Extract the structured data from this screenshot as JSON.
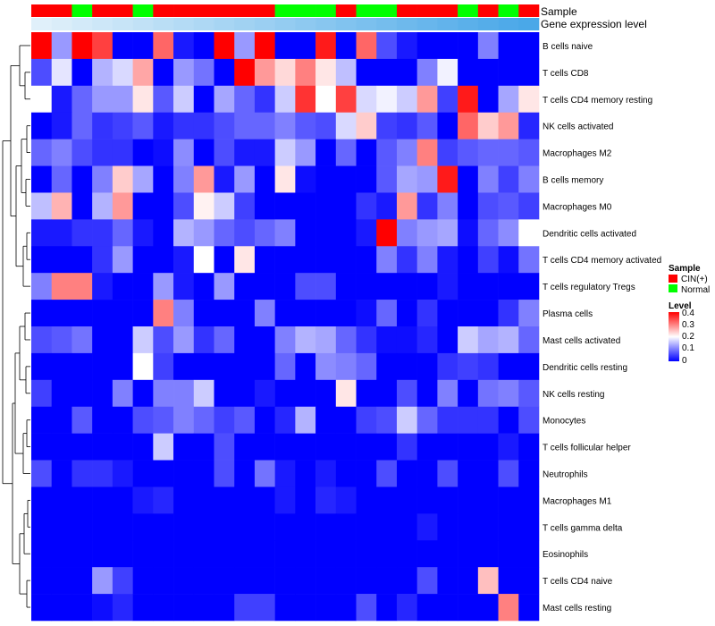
{
  "chart_data": {
    "type": "heatmap",
    "title": "",
    "annotation_tracks": [
      "Sample",
      "Gene expression level"
    ],
    "sample_annotation": [
      "CIN(+)",
      "CIN(+)",
      "Normal",
      "CIN(+)",
      "CIN(+)",
      "Normal",
      "CIN(+)",
      "CIN(+)",
      "CIN(+)",
      "CIN(+)",
      "CIN(+)",
      "CIN(+)",
      "Normal",
      "Normal",
      "Normal",
      "CIN(+)",
      "Normal",
      "Normal",
      "CIN(+)",
      "CIN(+)",
      "CIN(+)",
      "Normal",
      "CIN(+)",
      "Normal",
      "CIN(+)"
    ],
    "expression_gradient": [
      0.05,
      0.09,
      0.13,
      0.17,
      0.21,
      0.25,
      0.29,
      0.33,
      0.37,
      0.41,
      0.45,
      0.49,
      0.53,
      0.57,
      0.61,
      0.65,
      0.69,
      0.73,
      0.77,
      0.81,
      0.85,
      0.89,
      0.93,
      0.97,
      1.0
    ],
    "rows": [
      "B cells naive",
      "T cells CD8",
      "T cells CD4 memory resting",
      "NK cells activated",
      "Macrophages M2",
      "B cells memory",
      "Macrophages M0",
      "Dendritic cells activated",
      "T cells CD4 memory activated",
      "T cells regulatory  Tregs",
      "Plasma cells",
      "Mast cells activated",
      "Dendritic cells resting",
      "NK cells resting",
      "Monocytes",
      "T cells follicular helper",
      "Neutrophils",
      "Macrophages M1",
      "T cells gamma delta",
      "Eosinophils",
      "T cells CD4 naive",
      "Mast cells resting"
    ],
    "values": [
      [
        0.4,
        0.12,
        0.4,
        0.35,
        0.0,
        0.0,
        0.32,
        0.02,
        0.0,
        0.4,
        0.12,
        0.4,
        0.0,
        0.0,
        0.38,
        0.0,
        0.32,
        0.06,
        0.02,
        0.0,
        0.0,
        0.0,
        0.1,
        0.0,
        0.0
      ],
      [
        0.06,
        0.18,
        0.0,
        0.14,
        0.17,
        0.27,
        0.0,
        0.12,
        0.09,
        0.0,
        0.4,
        0.28,
        0.23,
        0.3,
        0.22,
        0.15,
        0.0,
        0.0,
        0.0,
        0.1,
        0.19,
        0.0,
        0.0,
        0.0,
        0.0
      ],
      [
        0.2,
        0.02,
        0.08,
        0.12,
        0.12,
        0.22,
        0.07,
        0.16,
        0.0,
        0.13,
        0.08,
        0.04,
        0.16,
        0.36,
        0.2,
        0.35,
        0.17,
        0.19,
        0.16,
        0.28,
        0.05,
        0.38,
        0.0,
        0.13,
        0.22
      ],
      [
        0.0,
        0.02,
        0.08,
        0.04,
        0.05,
        0.07,
        0.02,
        0.04,
        0.04,
        0.06,
        0.08,
        0.08,
        0.1,
        0.07,
        0.06,
        0.17,
        0.24,
        0.05,
        0.04,
        0.07,
        0.0,
        0.32,
        0.24,
        0.28,
        0.03
      ],
      [
        0.08,
        0.1,
        0.06,
        0.04,
        0.04,
        0.0,
        0.01,
        0.11,
        0.0,
        0.06,
        0.02,
        0.02,
        0.16,
        0.12,
        0.0,
        0.08,
        0.0,
        0.07,
        0.1,
        0.3,
        0.05,
        0.07,
        0.08,
        0.08,
        0.07
      ],
      [
        0.0,
        0.08,
        0.0,
        0.1,
        0.24,
        0.13,
        0.0,
        0.1,
        0.28,
        0.02,
        0.12,
        0.0,
        0.22,
        0.01,
        0.0,
        0.0,
        0.0,
        0.07,
        0.13,
        0.12,
        0.38,
        0.0,
        0.1,
        0.05,
        0.1
      ],
      [
        0.15,
        0.26,
        0.0,
        0.14,
        0.28,
        0.0,
        0.0,
        0.06,
        0.21,
        0.16,
        0.05,
        0.0,
        0.0,
        0.0,
        0.0,
        0.0,
        0.04,
        0.02,
        0.28,
        0.04,
        0.1,
        0.0,
        0.06,
        0.07,
        0.05
      ],
      [
        0.02,
        0.02,
        0.04,
        0.04,
        0.08,
        0.02,
        0.0,
        0.14,
        0.12,
        0.08,
        0.06,
        0.08,
        0.1,
        0.0,
        0.0,
        0.0,
        0.02,
        0.4,
        0.1,
        0.12,
        0.13,
        0.01,
        0.08,
        0.11,
        0.2
      ],
      [
        0.0,
        0.0,
        0.0,
        0.04,
        0.12,
        0.0,
        0.0,
        0.02,
        0.2,
        0.0,
        0.22,
        0.0,
        0.0,
        0.0,
        0.0,
        0.0,
        0.0,
        0.1,
        0.04,
        0.1,
        0.02,
        0.0,
        0.05,
        0.01,
        0.09
      ],
      [
        0.1,
        0.3,
        0.3,
        0.02,
        0.0,
        0.0,
        0.12,
        0.02,
        0.0,
        0.12,
        0.0,
        0.0,
        0.0,
        0.06,
        0.06,
        0.0,
        0.0,
        0.0,
        0.0,
        0.0,
        0.02,
        0.0,
        0.0,
        0.0,
        0.0
      ],
      [
        0.0,
        0.0,
        0.0,
        0.0,
        0.0,
        0.0,
        0.3,
        0.1,
        0.0,
        0.0,
        0.0,
        0.1,
        0.0,
        0.0,
        0.0,
        0.0,
        0.01,
        0.08,
        0.0,
        0.04,
        0.0,
        0.0,
        0.0,
        0.04,
        0.1
      ],
      [
        0.06,
        0.07,
        0.09,
        0.0,
        0.0,
        0.16,
        0.06,
        0.12,
        0.04,
        0.08,
        0.0,
        0.0,
        0.1,
        0.14,
        0.13,
        0.08,
        0.04,
        0.01,
        0.01,
        0.03,
        0.0,
        0.16,
        0.13,
        0.14,
        0.08
      ],
      [
        0.0,
        0.0,
        0.0,
        0.0,
        0.0,
        0.2,
        0.05,
        0.0,
        0.0,
        0.0,
        0.0,
        0.0,
        0.08,
        0.0,
        0.11,
        0.1,
        0.08,
        0.0,
        0.0,
        0.0,
        0.04,
        0.05,
        0.04,
        0.0,
        0.0
      ],
      [
        0.05,
        0.0,
        0.0,
        0.0,
        0.1,
        0.0,
        0.1,
        0.1,
        0.16,
        0.0,
        0.0,
        0.02,
        0.0,
        0.0,
        0.0,
        0.22,
        0.0,
        0.0,
        0.06,
        0.0,
        0.1,
        0.0,
        0.09,
        0.1,
        0.07
      ],
      [
        0.0,
        0.0,
        0.07,
        0.0,
        0.0,
        0.06,
        0.07,
        0.1,
        0.08,
        0.05,
        0.07,
        0.0,
        0.03,
        0.14,
        0.0,
        0.0,
        0.05,
        0.06,
        0.16,
        0.08,
        0.04,
        0.04,
        0.04,
        0.0,
        0.06
      ],
      [
        0.0,
        0.0,
        0.0,
        0.0,
        0.0,
        0.0,
        0.16,
        0.0,
        0.0,
        0.06,
        0.0,
        0.0,
        0.0,
        0.0,
        0.0,
        0.0,
        0.0,
        0.0,
        0.04,
        0.0,
        0.0,
        0.0,
        0.0,
        0.02,
        0.0
      ],
      [
        0.06,
        0.0,
        0.04,
        0.04,
        0.02,
        0.0,
        0.0,
        0.0,
        0.0,
        0.06,
        0.0,
        0.09,
        0.02,
        0.0,
        0.02,
        0.0,
        0.0,
        0.06,
        0.0,
        0.0,
        0.06,
        0.0,
        0.0,
        0.06,
        0.0
      ],
      [
        0.0,
        0.0,
        0.0,
        0.0,
        0.0,
        0.02,
        0.03,
        0.0,
        0.0,
        0.0,
        0.0,
        0.0,
        0.02,
        0.0,
        0.03,
        0.02,
        0.0,
        0.0,
        0.0,
        0.0,
        0.0,
        0.0,
        0.0,
        0.0,
        0.0
      ],
      [
        0.0,
        0.0,
        0.0,
        0.0,
        0.0,
        0.0,
        0.0,
        0.0,
        0.0,
        0.0,
        0.0,
        0.0,
        0.0,
        0.0,
        0.0,
        0.0,
        0.0,
        0.0,
        0.0,
        0.02,
        0.0,
        0.0,
        0.0,
        0.0,
        0.0
      ],
      [
        0.0,
        0.0,
        0.0,
        0.0,
        0.0,
        0.0,
        0.0,
        0.0,
        0.0,
        0.0,
        0.0,
        0.0,
        0.0,
        0.0,
        0.0,
        0.0,
        0.0,
        0.0,
        0.0,
        0.0,
        0.0,
        0.0,
        0.0,
        0.0,
        0.0
      ],
      [
        0.0,
        0.0,
        0.0,
        0.12,
        0.05,
        0.0,
        0.0,
        0.0,
        0.0,
        0.0,
        0.0,
        0.0,
        0.0,
        0.0,
        0.0,
        0.0,
        0.0,
        0.0,
        0.0,
        0.06,
        0.0,
        0.0,
        0.25,
        0.0,
        0.0
      ],
      [
        0.0,
        0.0,
        0.0,
        0.01,
        0.03,
        0.0,
        0.0,
        0.0,
        0.0,
        0.0,
        0.05,
        0.05,
        0.0,
        0.0,
        0.0,
        0.0,
        0.06,
        0.0,
        0.03,
        0.0,
        0.0,
        0.0,
        0.0,
        0.3,
        0.0
      ]
    ],
    "legend_sample": {
      "title": "Sample",
      "entries": [
        {
          "label": "CIN(+)",
          "color": "#ff0000"
        },
        {
          "label": "Normal",
          "color": "#00ff00"
        }
      ]
    },
    "legend_level": {
      "title": "Level",
      "ticks": [
        "0.4",
        "0.3",
        "0.2",
        "0.1",
        "0"
      ],
      "range": [
        0,
        0.4
      ]
    },
    "colors": {
      "low": "#0000ff",
      "mid": "#ffffff",
      "high": "#ff0000",
      "gradient_start": "#e8f4fb",
      "gradient_end": "#4aa8e8"
    },
    "row_dendrogram": true
  }
}
